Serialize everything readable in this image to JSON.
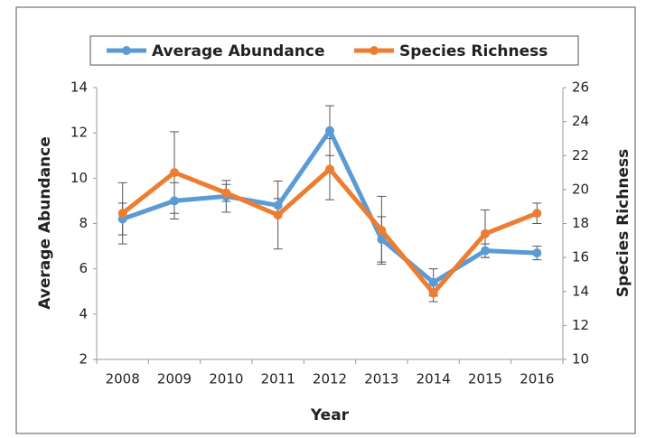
{
  "chart_data": {
    "type": "line",
    "x_label": "Year",
    "y_label": "Average Abundance",
    "y2_label": "Species Richness",
    "categories": [
      "2008",
      "2009",
      "2010",
      "2011",
      "2012",
      "2013",
      "2014",
      "2015",
      "2016"
    ],
    "series": [
      {
        "name": "Average Abundance",
        "color": "#5b9bd5",
        "values": [
          8.2,
          9.0,
          9.2,
          8.8,
          12.1,
          7.3,
          5.4,
          6.8,
          6.7
        ],
        "errors": [
          0.7,
          0.8,
          0.7,
          0.3,
          1.1,
          1.0,
          0.6,
          0.3,
          0.3
        ]
      },
      {
        "name": "Species Richness",
        "color": "#ed7d31",
        "axis": "y2",
        "values": [
          18.6,
          21.0,
          19.8,
          18.5,
          21.2,
          17.6,
          13.9,
          17.4,
          18.6
        ],
        "errors": [
          1.8,
          2.4,
          0.5,
          2.0,
          1.8,
          2.0,
          0.5,
          1.4,
          0.6
        ]
      }
    ],
    "ylim": [
      2,
      14
    ],
    "yticks": [
      2,
      4,
      6,
      8,
      10,
      12,
      14
    ],
    "y2lim": [
      10,
      26
    ],
    "y2ticks": [
      10,
      12,
      14,
      16,
      18,
      20,
      22,
      24,
      26
    ],
    "legend": "top"
  }
}
